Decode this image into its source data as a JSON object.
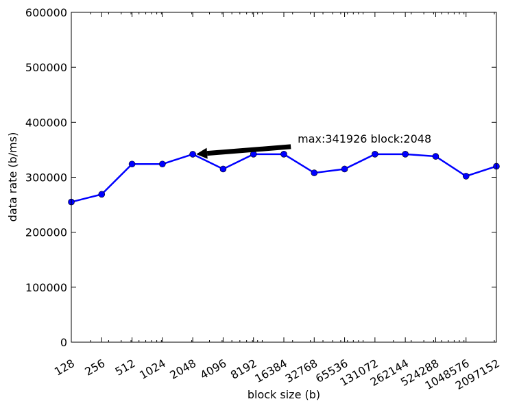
{
  "chart_data": {
    "type": "line",
    "title": "",
    "xlabel": "block size (b)",
    "ylabel": "data rate (b/ms)",
    "x_scale": "log2",
    "xlim": [
      128,
      2097152
    ],
    "ylim": [
      0,
      600000
    ],
    "categories": [
      "128",
      "256",
      "512",
      "1024",
      "2048",
      "4096",
      "8192",
      "16384",
      "32768",
      "65536",
      "131072",
      "262144",
      "524288",
      "1048576",
      "2097152"
    ],
    "yticks": [
      "0",
      "100000",
      "200000",
      "300000",
      "400000",
      "500000",
      "600000"
    ],
    "series": [
      {
        "color": "#0000ff",
        "values": [
          255000,
          269000,
          324000,
          324000,
          341926,
          315000,
          342000,
          342000,
          308000,
          315000,
          342000,
          342000,
          338000,
          302000,
          320000
        ]
      }
    ],
    "annotation": {
      "text": "max:341926 block:2048",
      "x": 2048,
      "y": 341926
    },
    "grid": false
  }
}
